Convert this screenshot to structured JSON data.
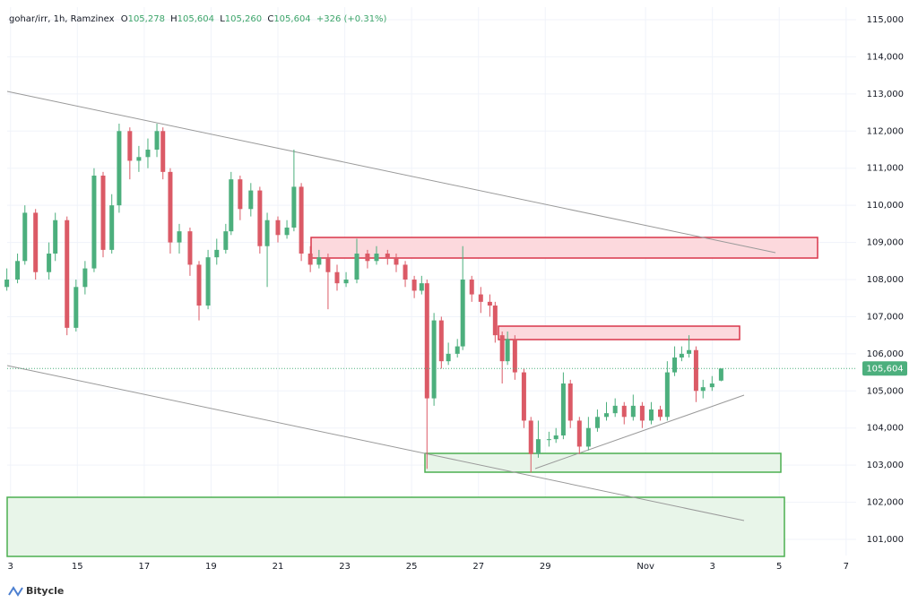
{
  "chart_data": {
    "type": "candlestick",
    "header": {
      "symbol": "gohar/irr, 1h, Ramzinex",
      "o_label": "O",
      "o": "105,278",
      "h_label": "H",
      "h": "105,604",
      "l_label": "L",
      "l": "105,260",
      "c_label": "C",
      "c": "105,604",
      "change": "+326 (+0.31%)"
    },
    "watermark": "Bitycle",
    "up_color": "#4caf7d",
    "down_color": "#db5a66",
    "grid": true,
    "xlim": [
      12.9,
      38.3
    ],
    "xticks": [
      {
        "value": 13,
        "label": "3"
      },
      15,
      17,
      19,
      21,
      23,
      25,
      27,
      29,
      {
        "value": 32,
        "label": "Nov"
      },
      {
        "value": 34,
        "label": "3"
      },
      {
        "value": 36,
        "label": "5"
      },
      {
        "value": 38,
        "label": "7"
      }
    ],
    "ylim": [
      100566,
      115338
    ],
    "yticks": [
      {
        "value": 101000,
        "label": "101,000"
      },
      {
        "value": 102000,
        "label": "102,000"
      },
      {
        "value": 103000,
        "label": "103,000"
      },
      {
        "value": 104000,
        "label": "104,000"
      },
      {
        "value": 105000,
        "label": "105,000"
      },
      {
        "value": 106000,
        "label": "106,000"
      },
      {
        "value": 107000,
        "label": "107,000"
      },
      {
        "value": 108000,
        "label": "108,000"
      },
      {
        "value": 109000,
        "label": "109,000"
      },
      {
        "value": 110000,
        "label": "110,000"
      },
      {
        "value": 111000,
        "label": "111,000"
      },
      {
        "value": 112000,
        "label": "112,000"
      },
      {
        "value": 113000,
        "label": "113,000"
      },
      {
        "value": 114000,
        "label": "114,000"
      },
      {
        "value": 115000,
        "label": "115,000"
      }
    ],
    "last_price": {
      "value": 105604,
      "label": "105,604"
    },
    "x": [
      12.89,
      13.21,
      13.43,
      13.75,
      14.15,
      14.34,
      14.69,
      14.96,
      15.23,
      15.5,
      15.77,
      16.03,
      16.25,
      16.57,
      16.84,
      17.11,
      17.38,
      17.56,
      17.78,
      18.05,
      18.37,
      18.64,
      18.91,
      19.17,
      19.44,
      19.6,
      19.87,
      20.19,
      20.46,
      20.68,
      21.0,
      21.27,
      21.48,
      21.7,
      21.97,
      22.23,
      22.5,
      22.77,
      23.04,
      23.36,
      23.68,
      23.95,
      24.28,
      24.54,
      24.81,
      25.08,
      25.3,
      25.46,
      25.67,
      25.89,
      26.1,
      26.37,
      26.53,
      26.8,
      27.07,
      27.34,
      27.5,
      27.71,
      27.87,
      28.09,
      28.36,
      28.57,
      28.79,
      29.11,
      29.32,
      29.54,
      29.75,
      30.02,
      30.29,
      30.56,
      30.83,
      31.09,
      31.36,
      31.63,
      31.9,
      32.17,
      32.44,
      32.65,
      32.87,
      33.08,
      33.3,
      33.51,
      33.72,
      33.99,
      34.26
    ],
    "open": [
      107800,
      108000,
      108500,
      109800,
      108200,
      108700,
      109600,
      106700,
      107800,
      108300,
      110800,
      108800,
      110000,
      112000,
      111200,
      111300,
      111500,
      112000,
      110900,
      109000,
      109300,
      108400,
      107300,
      108600,
      108800,
      109300,
      110700,
      109900,
      110400,
      108900,
      109600,
      109200,
      109400,
      110500,
      108700,
      108400,
      108600,
      108200,
      107900,
      108000,
      108700,
      108500,
      108700,
      108600,
      108400,
      108000,
      107700,
      107900,
      104800,
      106900,
      105800,
      106000,
      106200,
      108000,
      107600,
      107400,
      107300,
      106500,
      105800,
      106400,
      105500,
      104200,
      103300,
      103700,
      103700,
      103800,
      105200,
      104200,
      103500,
      104000,
      104300,
      104400,
      104600,
      104300,
      104600,
      104200,
      104500,
      104300,
      105500,
      105900,
      106000,
      106100,
      105000,
      105100,
      105278
    ],
    "high": [
      108300,
      108700,
      110000,
      109900,
      109000,
      109800,
      109700,
      108000,
      108500,
      111000,
      110900,
      110300,
      112200,
      112100,
      111600,
      111800,
      112200,
      112100,
      111000,
      109500,
      109400,
      108500,
      108800,
      109100,
      109500,
      110900,
      110800,
      110600,
      110500,
      109800,
      109700,
      109600,
      111500,
      110600,
      108900,
      108800,
      108700,
      108400,
      108200,
      109100,
      108800,
      108900,
      108800,
      108700,
      108500,
      108100,
      108100,
      108000,
      107100,
      107000,
      106300,
      106400,
      108900,
      108100,
      107800,
      107600,
      107400,
      106600,
      106600,
      106500,
      105600,
      104300,
      104200,
      103900,
      104000,
      105500,
      105300,
      104300,
      104300,
      104500,
      104700,
      104800,
      104700,
      104900,
      104700,
      104700,
      104600,
      105800,
      106200,
      106200,
      106500,
      106200,
      105300,
      105400,
      105604
    ],
    "low": [
      107700,
      107900,
      108400,
      108000,
      108000,
      108500,
      106500,
      106600,
      107600,
      108200,
      108600,
      108700,
      109800,
      110700,
      110900,
      111000,
      111300,
      110700,
      108700,
      108700,
      108100,
      106900,
      107200,
      108400,
      108700,
      109200,
      109600,
      109700,
      108700,
      107800,
      109000,
      109100,
      109300,
      108500,
      108200,
      108300,
      107200,
      107700,
      107800,
      107900,
      108300,
      108400,
      108400,
      108200,
      107800,
      107500,
      107600,
      102900,
      104600,
      105600,
      105700,
      105900,
      106100,
      107400,
      107100,
      107000,
      106300,
      105200,
      105700,
      105300,
      104000,
      102800,
      103200,
      103500,
      103600,
      103700,
      104000,
      103300,
      103400,
      103900,
      104200,
      104300,
      104100,
      104200,
      104000,
      104100,
      104200,
      104200,
      105400,
      105800,
      105900,
      104700,
      104800,
      105000,
      105260
    ],
    "close": [
      108000,
      108500,
      109800,
      108200,
      108700,
      109600,
      106700,
      107800,
      108300,
      110800,
      108800,
      110000,
      112000,
      111200,
      111300,
      111500,
      112000,
      110900,
      109000,
      109300,
      108400,
      107300,
      108600,
      108800,
      109300,
      110700,
      109900,
      110400,
      108900,
      109600,
      109200,
      109400,
      110500,
      108700,
      108400,
      108600,
      108200,
      107900,
      108000,
      108700,
      108500,
      108700,
      108600,
      108400,
      108000,
      107700,
      107900,
      104800,
      106900,
      105800,
      106000,
      106200,
      108000,
      107600,
      107400,
      107300,
      106500,
      105800,
      106400,
      105500,
      104200,
      103300,
      103700,
      103700,
      103800,
      105200,
      104200,
      103500,
      104000,
      104300,
      104400,
      104600,
      104300,
      104600,
      104200,
      104500,
      104300,
      105500,
      105900,
      106000,
      106100,
      105000,
      105100,
      105200,
      105604
    ]
  }
}
